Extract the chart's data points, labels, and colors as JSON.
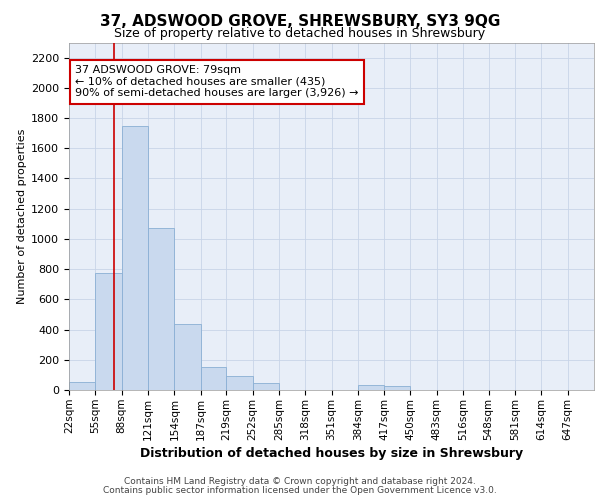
{
  "title": "37, ADSWOOD GROVE, SHREWSBURY, SY3 9QG",
  "subtitle": "Size of property relative to detached houses in Shrewsbury",
  "xlabel": "Distribution of detached houses by size in Shrewsbury",
  "ylabel": "Number of detached properties",
  "footer_line1": "Contains HM Land Registry data © Crown copyright and database right 2024.",
  "footer_line2": "Contains public sector information licensed under the Open Government Licence v3.0.",
  "annotation_title": "37 ADSWOOD GROVE: 79sqm",
  "annotation_line1": "← 10% of detached houses are smaller (435)",
  "annotation_line2": "90% of semi-detached houses are larger (3,926) →",
  "property_size": 79,
  "bins": [
    22,
    55,
    88,
    121,
    154,
    187,
    219,
    252,
    285,
    318,
    351,
    384,
    417,
    450,
    483,
    516,
    548,
    581,
    614,
    647,
    680
  ],
  "bar_heights": [
    55,
    775,
    1750,
    1075,
    435,
    155,
    90,
    45,
    0,
    0,
    0,
    30,
    25,
    0,
    0,
    0,
    0,
    0,
    0,
    0
  ],
  "bar_color": "#c9d9ee",
  "bar_edge_color": "#8aafd4",
  "grid_color": "#c8d4e8",
  "background_color": "#e8eef8",
  "red_line_color": "#cc0000",
  "annotation_box_facecolor": "#ffffff",
  "annotation_box_edgecolor": "#cc0000",
  "ylim": [
    0,
    2300
  ],
  "yticks": [
    0,
    200,
    400,
    600,
    800,
    1000,
    1200,
    1400,
    1600,
    1800,
    2000,
    2200
  ],
  "title_fontsize": 11,
  "subtitle_fontsize": 9,
  "ylabel_fontsize": 8,
  "xlabel_fontsize": 9,
  "tick_fontsize": 8,
  "xtick_fontsize": 7.5,
  "footer_fontsize": 6.5,
  "annot_fontsize": 8
}
